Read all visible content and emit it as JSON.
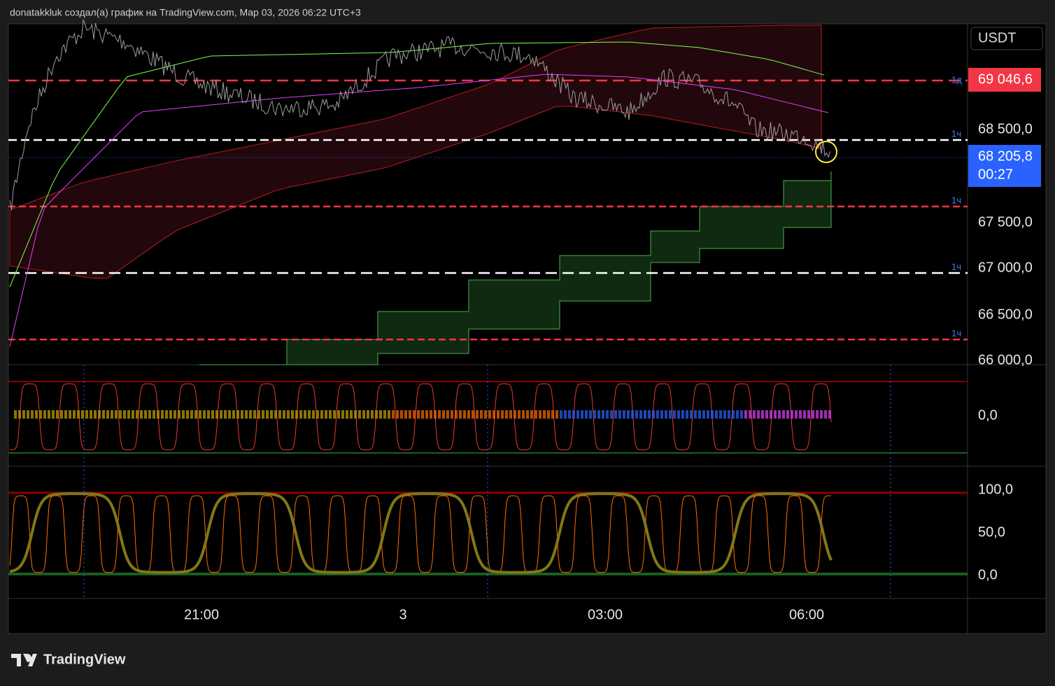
{
  "header": {
    "attribution": "donatakkluk создал(а) график на TradingView.com, Мар 03, 2026 06:22 UTC+3"
  },
  "currency": "USDT",
  "price_axis": [
    "68 500,0",
    "67 500,0",
    "67 000,0",
    "66 500,0",
    "66 000,0"
  ],
  "badges": {
    "level": "69 046,6",
    "last": "68 205,8",
    "countdown": "00:27"
  },
  "level_tags": [
    "1д",
    "1ч",
    "1ч",
    "1ч",
    "1ч"
  ],
  "osc1_axis": [
    "0,0"
  ],
  "osc2_axis": [
    "100,0",
    "50,0",
    "0,0"
  ],
  "time_axis": [
    "21:00",
    "3",
    "03:00",
    "06:00"
  ],
  "footer": {
    "brand": "TradingView"
  }
}
